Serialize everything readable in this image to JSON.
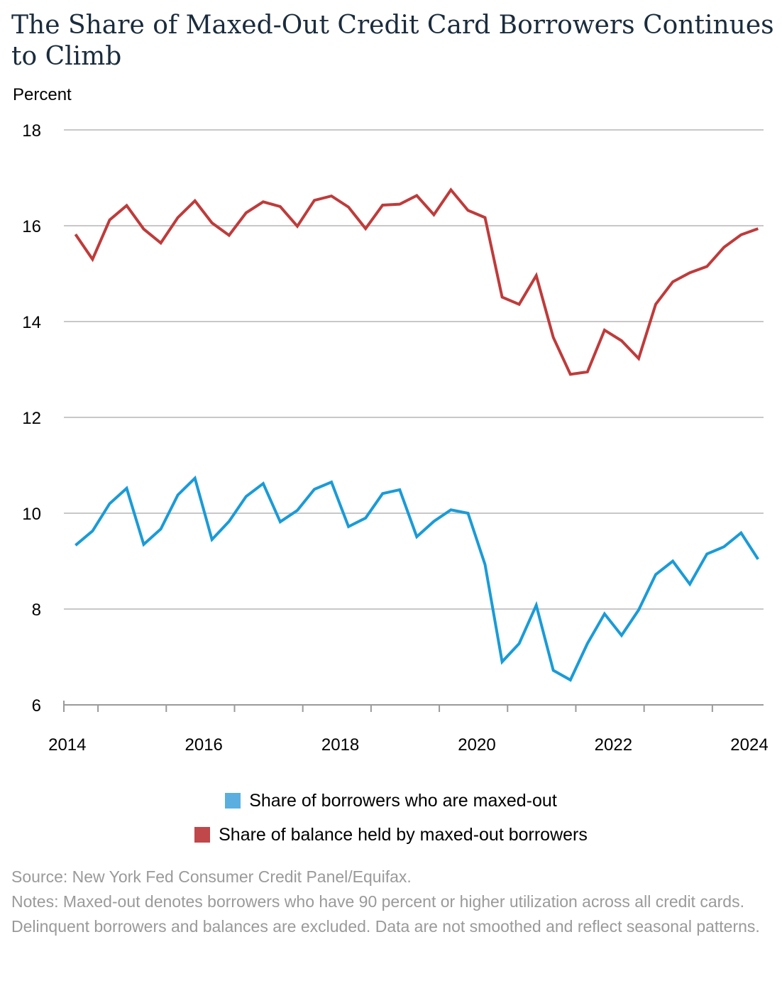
{
  "title": "The Share of Maxed-Out Credit Card Borrowers Continues to Climb",
  "chart_data": {
    "type": "line",
    "ylabel": "Percent",
    "ylim": [
      6,
      18
    ],
    "yticks": [
      "18",
      "16",
      "14",
      "12",
      "10",
      "8",
      "6"
    ],
    "xlim": [
      2014,
      2024.25
    ],
    "xticks": [
      "2014",
      "2016",
      "2018",
      "2020",
      "2022",
      "2024"
    ],
    "grid": true,
    "series": [
      {
        "name": "Share of borrowers who are maxed-out",
        "color": "#1a9bd7",
        "x": [
          2014.17,
          2014.42,
          2014.67,
          2014.92,
          2015.17,
          2015.42,
          2015.67,
          2015.92,
          2016.17,
          2016.42,
          2016.67,
          2016.92,
          2017.17,
          2017.42,
          2017.67,
          2017.92,
          2018.17,
          2018.42,
          2018.67,
          2018.92,
          2019.17,
          2019.42,
          2019.67,
          2019.92,
          2020.17,
          2020.42,
          2020.67,
          2020.92,
          2021.17,
          2021.42,
          2021.67,
          2021.92,
          2022.17,
          2022.42,
          2022.67,
          2022.92,
          2023.17,
          2023.42,
          2023.67,
          2023.92,
          2024.17
        ],
        "values": [
          9.33,
          9.63,
          10.2,
          10.52,
          9.35,
          9.67,
          10.38,
          10.73,
          9.45,
          9.83,
          10.35,
          10.62,
          9.82,
          10.06,
          10.5,
          10.65,
          9.72,
          9.9,
          10.41,
          10.49,
          9.51,
          9.83,
          10.07,
          10.0,
          8.93,
          6.9,
          7.28,
          8.08,
          6.72,
          6.52,
          7.28,
          7.9,
          7.45,
          7.98,
          8.72,
          9.0,
          8.52,
          9.15,
          9.3,
          9.59,
          9.04
        ]
      },
      {
        "name": "Share of balance held by maxed-out borrowers",
        "color": "#bf3b3b",
        "x": [
          2014.17,
          2014.42,
          2014.67,
          2014.92,
          2015.17,
          2015.42,
          2015.67,
          2015.92,
          2016.17,
          2016.42,
          2016.67,
          2016.92,
          2017.17,
          2017.42,
          2017.67,
          2017.92,
          2018.17,
          2018.42,
          2018.67,
          2018.92,
          2019.17,
          2019.42,
          2019.67,
          2019.92,
          2020.17,
          2020.42,
          2020.67,
          2020.92,
          2021.17,
          2021.42,
          2021.67,
          2021.92,
          2022.17,
          2022.42,
          2022.67,
          2022.92,
          2023.17,
          2023.42,
          2023.67,
          2023.92,
          2024.17
        ],
        "values": [
          15.82,
          15.3,
          16.12,
          16.42,
          15.93,
          15.64,
          16.17,
          16.52,
          16.06,
          15.8,
          16.27,
          16.5,
          16.4,
          15.99,
          16.53,
          16.62,
          16.39,
          15.94,
          16.43,
          16.45,
          16.63,
          16.23,
          16.75,
          16.32,
          16.17,
          14.51,
          14.36,
          14.96,
          13.67,
          12.9,
          12.95,
          13.82,
          13.6,
          13.23,
          14.36,
          14.83,
          15.02,
          15.15,
          15.55,
          15.81,
          15.94
        ]
      }
    ]
  },
  "legend": [
    {
      "label": "Share of borrowers who are maxed-out",
      "color": "#5aafe0"
    },
    {
      "label": "Share of balance held by maxed-out borrowers",
      "color": "#c0474a"
    }
  ],
  "source": "Source: New York Fed Consumer Credit Panel/Equifax.",
  "notes": "Notes: Maxed-out denotes borrowers who have 90 percent or higher utilization across all credit cards. Delinquent borrowers and balances are excluded. Data are not smoothed and reflect seasonal patterns."
}
